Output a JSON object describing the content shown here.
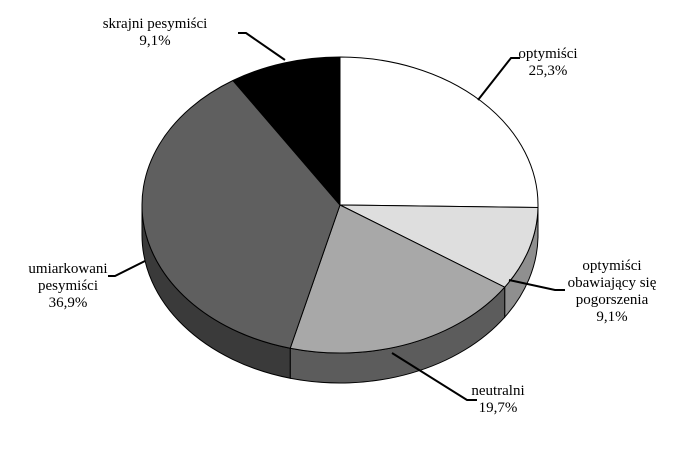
{
  "chart_data": {
    "type": "pie",
    "title": "",
    "style": "3d-tilted",
    "slices": [
      {
        "label": [
          "optymiści"
        ],
        "value_label": "25,3%",
        "value": 25.3,
        "color": "#ffffff",
        "side_color": "#bcbcbc"
      },
      {
        "label": [
          "optymiści",
          "obawiający się",
          "pogorszenia"
        ],
        "value_label": "9,1%",
        "value": 9.1,
        "color": "#dedede",
        "side_color": "#8f8f8f"
      },
      {
        "label": [
          "neutralni"
        ],
        "value_label": "19,7%",
        "value": 19.7,
        "color": "#a8a8a8",
        "side_color": "#5c5c5c"
      },
      {
        "label": [
          "umiarkowani",
          "pesymiści"
        ],
        "value_label": "36,9%",
        "value": 36.9,
        "color": "#5f5f5f",
        "side_color": "#3a3a3a"
      },
      {
        "label": [
          "skrajni pesymiści"
        ],
        "value_label": "9,1%",
        "value": 9.1,
        "color": "#000000",
        "side_color": "#000000"
      }
    ]
  }
}
